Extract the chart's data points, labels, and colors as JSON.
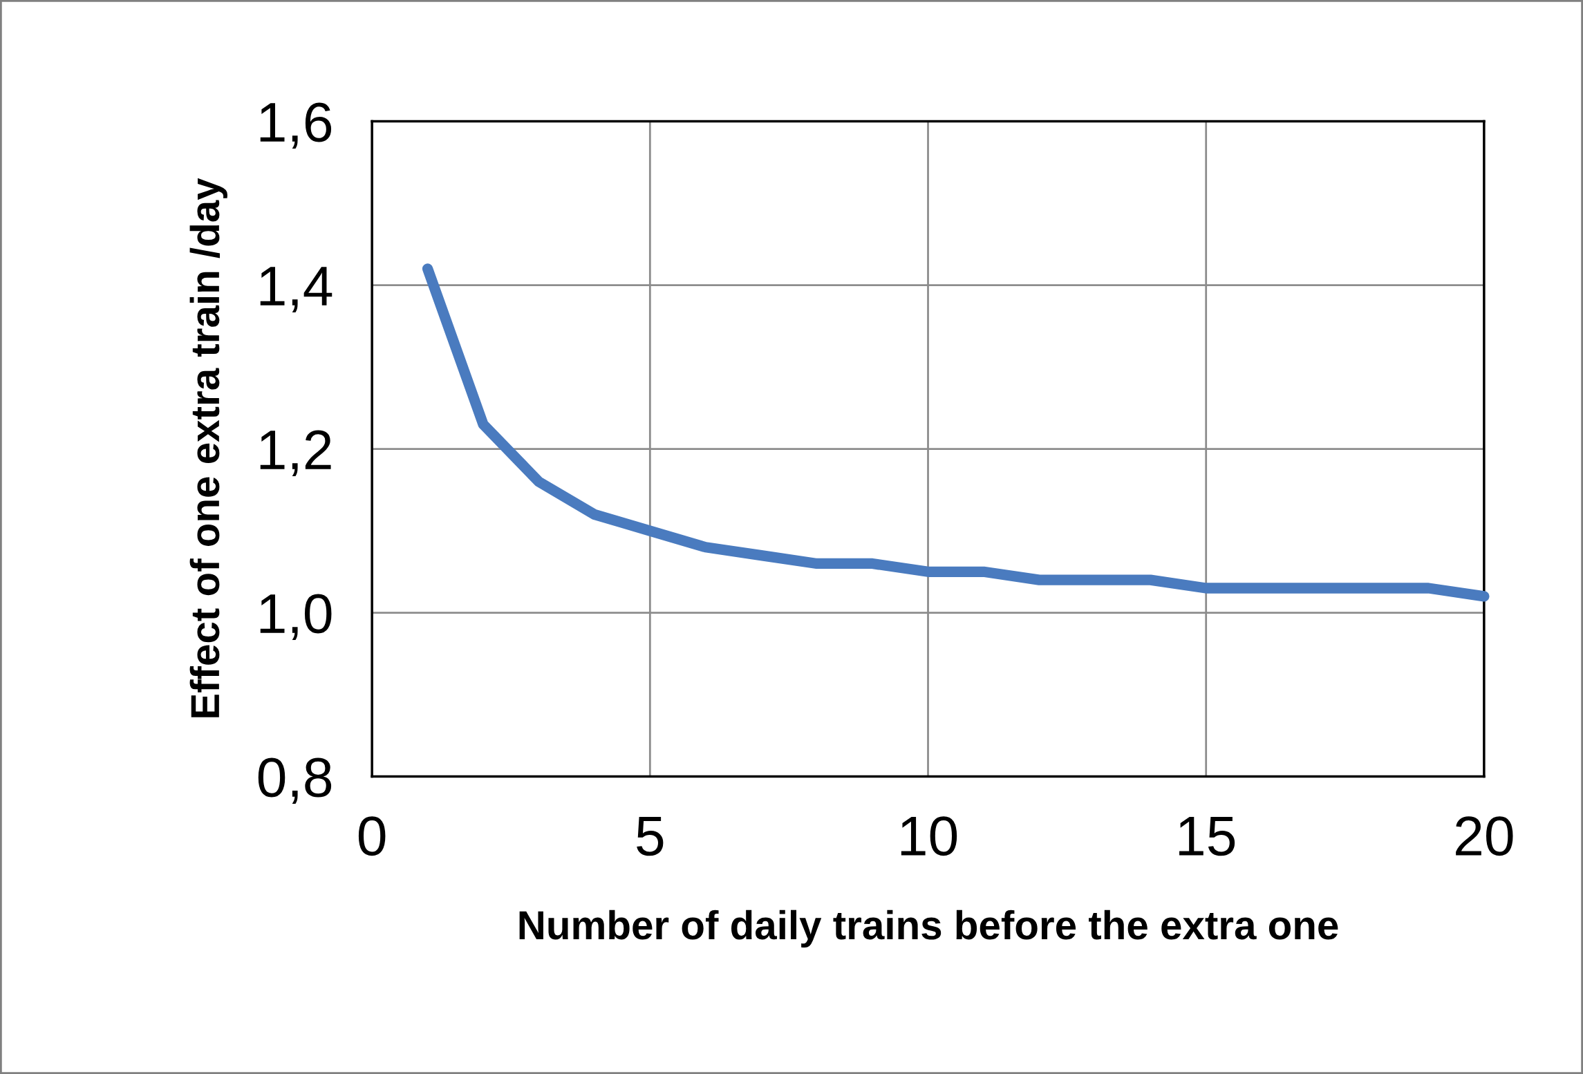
{
  "chart_data": {
    "type": "line",
    "xlabel": "Number of daily trains before the extra one",
    "ylabel": "Effect of one extra train /day",
    "x": [
      1,
      2,
      3,
      4,
      5,
      6,
      7,
      8,
      9,
      10,
      11,
      12,
      13,
      14,
      15,
      16,
      17,
      18,
      19,
      20
    ],
    "series": [
      {
        "color": "#4a7bbf",
        "values": [
          1.42,
          1.23,
          1.16,
          1.12,
          1.1,
          1.08,
          1.07,
          1.06,
          1.06,
          1.05,
          1.05,
          1.04,
          1.04,
          1.04,
          1.03,
          1.03,
          1.03,
          1.03,
          1.03,
          1.02
        ]
      }
    ],
    "xlim": [
      0,
      20
    ],
    "xticks": [
      0,
      5,
      10,
      15,
      20
    ],
    "ylim": [
      0.8,
      1.6
    ],
    "yticks": [
      {
        "value": 0.8,
        "label": "0,8"
      },
      {
        "value": 1.0,
        "label": "1,0"
      },
      {
        "value": 1.2,
        "label": "1,2"
      },
      {
        "value": 1.4,
        "label": "1,4"
      },
      {
        "value": 1.6,
        "label": "1,6"
      }
    ],
    "grid": true,
    "line_style": "solid"
  }
}
